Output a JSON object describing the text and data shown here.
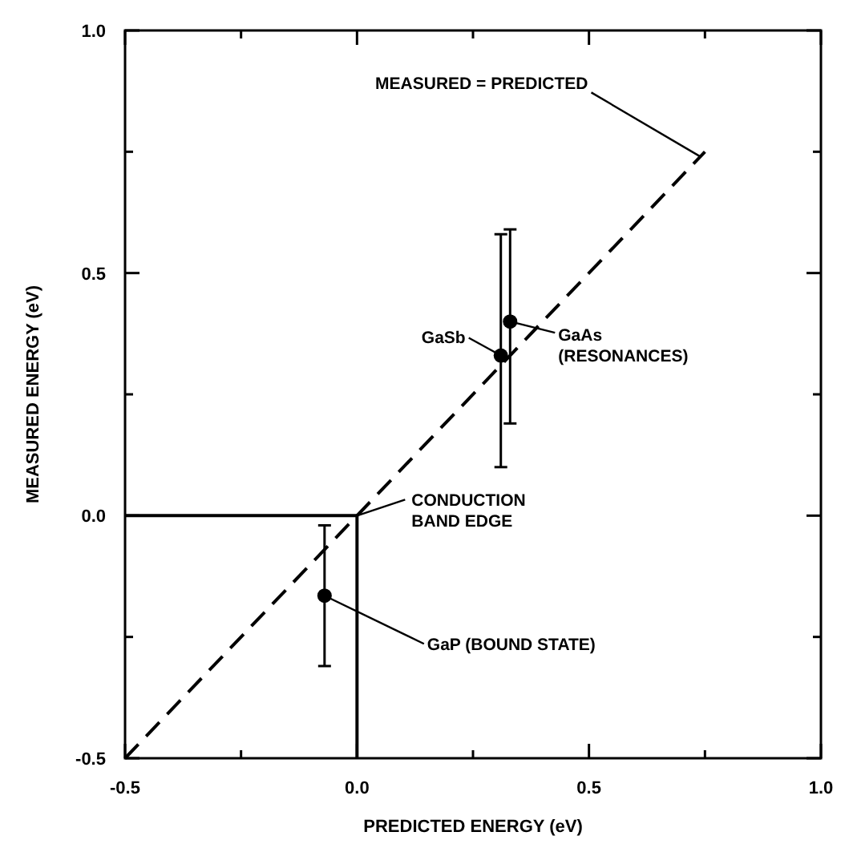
{
  "chart_data": {
    "type": "scatter",
    "xlabel": "PREDICTED ENERGY (eV)",
    "ylabel": "MEASURED ENERGY (eV)",
    "xlim": [
      -0.5,
      1.0
    ],
    "ylim": [
      -0.5,
      1.0
    ],
    "xticks": [
      -0.5,
      {
        "value": -0.25,
        "label": null
      },
      {
        "value": 0,
        "label": "0.0"
      },
      {
        "value": 0.25,
        "label": null
      },
      0.5,
      {
        "value": 0.75,
        "label": null
      },
      {
        "value": 1,
        "label": "1.0"
      }
    ],
    "yticks": [
      -0.5,
      {
        "value": -0.25,
        "label": null
      },
      {
        "value": 0,
        "label": "0.0"
      },
      {
        "value": 0.25,
        "label": null
      },
      0.5,
      {
        "value": 0.75,
        "label": null
      },
      {
        "value": 1,
        "label": "1.0"
      }
    ],
    "grid": false,
    "series": [
      {
        "type": "line",
        "color": "#000000",
        "line_style": "dashed",
        "marker": "none",
        "x": [
          -0.5,
          0.75
        ],
        "values": [
          -0.5,
          0.75
        ]
      },
      {
        "type": "line",
        "color": "#000000",
        "line_style": "solid",
        "marker": "none",
        "x": [
          -0.5,
          0,
          0
        ],
        "values": [
          0,
          0,
          -0.5
        ]
      },
      {
        "color": "#000000",
        "marker": "circle",
        "x": [
          -0.07,
          0.31,
          0.33
        ],
        "values": [
          -0.165,
          0.33,
          0.4
        ],
        "errors": [
          [
            -0.31,
            -0.02
          ],
          [
            0.1,
            0.58
          ],
          [
            0.19,
            0.59
          ]
        ]
      }
    ],
    "annotations": [
      {
        "text": "MEASURED = PREDICTED",
        "x": 0.74,
        "y": 0.74
      },
      {
        "text": "GaSb",
        "x": 0.31,
        "y": 0.33
      },
      {
        "text": "GaAs\n(RESONANCES)",
        "x": 0.33,
        "y": 0.4
      },
      {
        "text": "CONDUCTION\nBAND EDGE",
        "x": 0,
        "y": 0
      },
      {
        "text": "GaP (BOUND STATE)",
        "x": -0.07,
        "y": -0.165
      }
    ]
  }
}
